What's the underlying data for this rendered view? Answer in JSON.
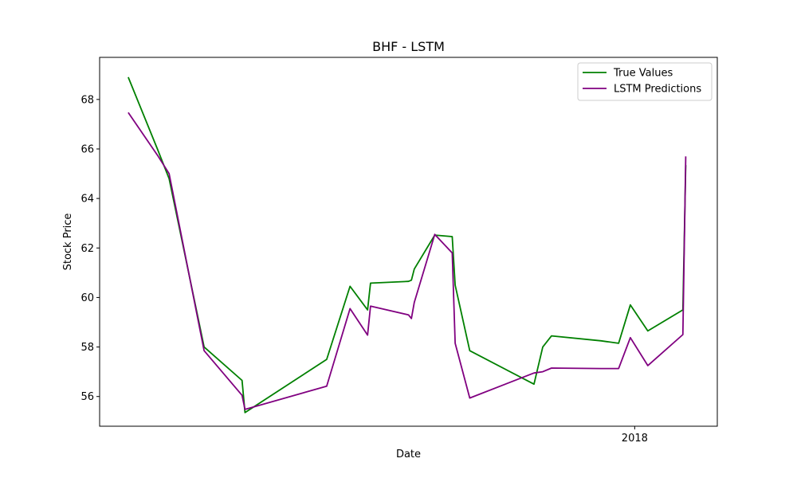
{
  "chart_data": {
    "type": "line",
    "title": "BHF - LSTM",
    "xlabel": "Date",
    "ylabel": "Stock Price",
    "ylim": [
      54.8,
      69.7
    ],
    "xlim": [
      -5.3,
      206.3
    ],
    "grid": false,
    "legend": "top-right",
    "y_ticks": [
      56,
      58,
      60,
      62,
      64,
      66,
      68
    ],
    "x_ticks": [
      {
        "x": 178,
        "label": "2018"
      }
    ],
    "series": [
      {
        "name": "True Values",
        "color": "#008000",
        "x": [
          4.5,
          14.5,
          18.5,
          30.5,
          43.5,
          44.5,
          72.5,
          80.5,
          86.5,
          87.5,
          100.5,
          101.5,
          102.5,
          109.5,
          115.5,
          116.5,
          121.5,
          143.5,
          146.5,
          149.5,
          166.5,
          172.5,
          176.5,
          182.5,
          194.5,
          195.5
        ],
        "y": [
          68.9,
          66.0,
          64.8,
          58.0,
          56.65,
          55.35,
          57.5,
          60.45,
          59.5,
          60.58,
          60.65,
          60.7,
          61.15,
          62.52,
          62.46,
          60.5,
          57.85,
          56.5,
          58.0,
          58.45,
          58.25,
          58.15,
          59.7,
          58.65,
          59.5,
          65.35
        ]
      },
      {
        "name": "LSTM Predictions",
        "color": "#800080",
        "x": [
          4.5,
          14.5,
          18.5,
          30.5,
          43.5,
          44.5,
          72.5,
          80.5,
          86.5,
          87.5,
          100.5,
          101.5,
          102.5,
          109.5,
          115.5,
          116.5,
          121.5,
          143.5,
          146.5,
          149.5,
          166.5,
          172.5,
          176.5,
          182.5,
          194.5,
          195.5
        ],
        "y": [
          67.47,
          65.75,
          65.0,
          57.85,
          56.05,
          55.48,
          56.42,
          59.55,
          58.48,
          59.65,
          59.3,
          59.15,
          59.8,
          62.55,
          61.8,
          58.15,
          55.94,
          56.95,
          57.0,
          57.15,
          57.13,
          57.13,
          58.38,
          57.25,
          58.5,
          65.7
        ]
      }
    ]
  }
}
